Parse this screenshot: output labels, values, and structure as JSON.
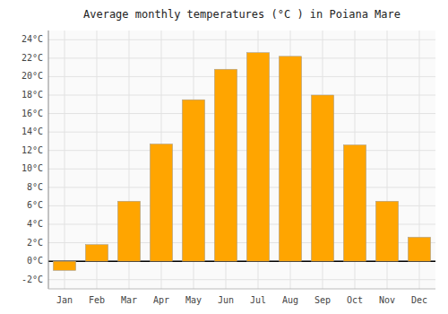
{
  "chart_data": {
    "type": "bar",
    "title": "Average monthly temperatures (°C ) in Poiana Mare",
    "categories": [
      "Jan",
      "Feb",
      "Mar",
      "Apr",
      "May",
      "Jun",
      "Jul",
      "Aug",
      "Sep",
      "Oct",
      "Nov",
      "Dec"
    ],
    "values": [
      -1.0,
      1.8,
      6.5,
      12.7,
      17.5,
      20.8,
      22.6,
      22.2,
      18.0,
      12.6,
      6.5,
      2.6
    ],
    "color": "#FFA500",
    "ylim": [
      -3,
      25
    ],
    "yticks": [
      {
        "value": -2,
        "label": "-2°C"
      },
      {
        "value": 0,
        "label": "0°C"
      },
      {
        "value": 2,
        "label": "2°C"
      },
      {
        "value": 4,
        "label": "4°C"
      },
      {
        "value": 6,
        "label": "6°C"
      },
      {
        "value": 8,
        "label": "8°C"
      },
      {
        "value": 10,
        "label": "10°C"
      },
      {
        "value": 12,
        "label": "12°C"
      },
      {
        "value": 14,
        "label": "14°C"
      },
      {
        "value": 16,
        "label": "16°C"
      },
      {
        "value": 18,
        "label": "18°C"
      },
      {
        "value": 20,
        "label": "20°C"
      },
      {
        "value": 22,
        "label": "22°C"
      },
      {
        "value": 24,
        "label": "24°C"
      }
    ],
    "grid": true
  }
}
